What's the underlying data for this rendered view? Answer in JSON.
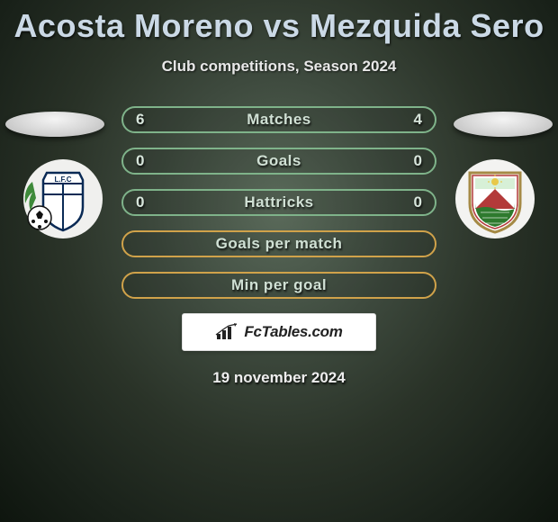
{
  "title": "Acosta Moreno vs Mezquida Sero",
  "subtitle": "Club competitions, Season 2024",
  "date": "19 november 2024",
  "brand": "FcTables.com",
  "colors": {
    "border_a": "#7fb38a",
    "border_b": "#d0a24a",
    "title_color": "#cbd9e6"
  },
  "rows": [
    {
      "label": "Matches",
      "left": "6",
      "right": "4",
      "border": "a"
    },
    {
      "label": "Goals",
      "left": "0",
      "right": "0",
      "border": "a"
    },
    {
      "label": "Hattricks",
      "left": "0",
      "right": "0",
      "border": "a"
    },
    {
      "label": "Goals per match",
      "left": "",
      "right": "",
      "border": "b"
    },
    {
      "label": "Min per goal",
      "left": "",
      "right": "",
      "border": "b"
    }
  ],
  "crest_left": {
    "bg": "#f0f0ee",
    "shield_fill": "#ffffff",
    "shield_stroke": "#0a2a55",
    "text": "L.F.C",
    "text_color": "#0a2a55",
    "leaf_color": "#3e8a3a"
  },
  "crest_right": {
    "bg": "#f3f3f1",
    "shield_stroke": "#a58a45",
    "mountain": "#b33a3a",
    "field": "#2e7a2e",
    "sun": "#e8c84a"
  }
}
